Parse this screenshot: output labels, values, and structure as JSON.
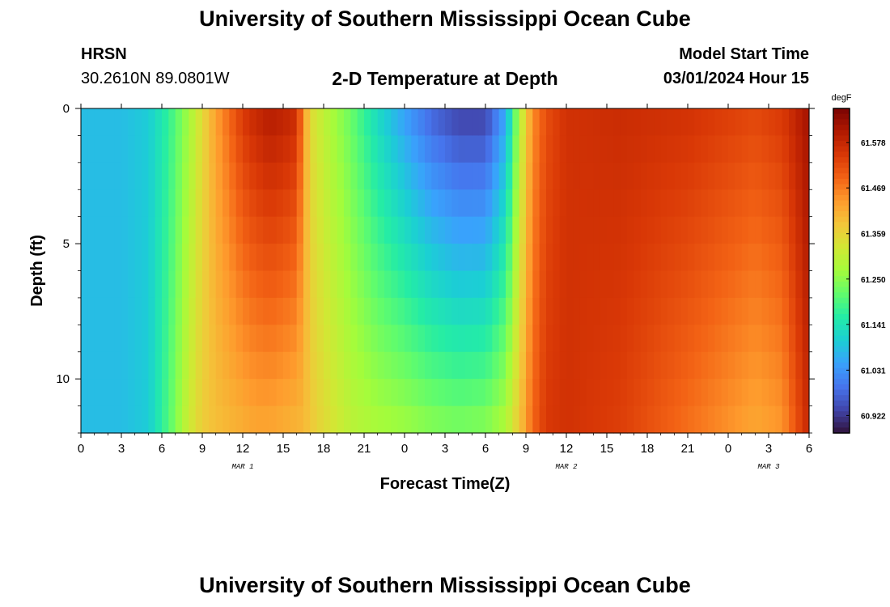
{
  "title": "University of Southern Mississippi Ocean Cube",
  "footer_title": "University of Southern Mississippi Ocean Cube",
  "station": {
    "name": "HRSN",
    "coords": "30.2610N  89.0801W"
  },
  "plot_title": "2-D Temperature at Depth",
  "model_start": {
    "label": "Model Start Time",
    "value": "03/01/2024 Hour 15"
  },
  "chart_data": {
    "type": "heatmap",
    "title": "2-D Temperature at Depth",
    "xlabel": "Forecast Time(Z)",
    "ylabel": "Depth (ft)",
    "x_ticks": [
      "0",
      "3",
      "6",
      "9",
      "12",
      "15",
      "18",
      "21",
      "0",
      "3",
      "6",
      "9",
      "12",
      "15",
      "18",
      "21",
      "0",
      "3",
      "6"
    ],
    "x_tick_hours": [
      0,
      3,
      6,
      9,
      12,
      15,
      18,
      21,
      24,
      27,
      30,
      33,
      36,
      39,
      42,
      45,
      48,
      51,
      54
    ],
    "x_range_hours": [
      0,
      54
    ],
    "day_labels": [
      {
        "label": "MAR 1",
        "hour": 12
      },
      {
        "label": "MAR 2",
        "hour": 36
      },
      {
        "label": "MAR 3",
        "hour": 51
      }
    ],
    "y_ticks": [
      "0",
      "5",
      "10"
    ],
    "y_tick_values": [
      0,
      5,
      10
    ],
    "y_range_ft": [
      0,
      12
    ],
    "y_reversed": true,
    "colorbar": {
      "unit": "degF",
      "ticks": [
        "61.578",
        "61.469",
        "61.359",
        "61.250",
        "61.141",
        "61.031",
        "60.922"
      ],
      "tick_values": [
        61.578,
        61.469,
        61.359,
        61.25,
        61.141,
        61.031,
        60.922
      ],
      "range": [
        60.88,
        61.66
      ],
      "colors": [
        "#30123b",
        "#4145ab",
        "#4675ed",
        "#39a2fc",
        "#1bcfd4",
        "#24eca6",
        "#61fc6c",
        "#a4fc3b",
        "#d1e834",
        "#f3c63a",
        "#fe9b2d",
        "#f36315",
        "#d93806",
        "#b11901",
        "#7a0403"
      ]
    },
    "time_profile": {
      "hours": [
        0,
        3,
        5,
        6.5,
        8,
        9,
        10,
        11,
        12,
        13,
        14,
        15,
        16,
        16.5,
        17,
        18,
        20,
        22,
        24,
        26,
        28,
        30,
        31.5,
        32.5,
        33.5,
        34.5,
        36,
        40,
        45,
        50,
        52,
        54
      ],
      "surface_degF": [
        61.08,
        61.08,
        61.1,
        61.17,
        61.27,
        61.35,
        61.43,
        61.49,
        61.55,
        61.58,
        61.6,
        61.59,
        61.57,
        61.45,
        61.35,
        61.3,
        61.22,
        61.12,
        61.04,
        60.97,
        60.93,
        60.93,
        61.05,
        61.28,
        61.45,
        61.52,
        61.56,
        61.57,
        61.56,
        61.53,
        61.55,
        61.62
      ],
      "bottom_degF": [
        61.08,
        61.08,
        61.1,
        61.2,
        61.32,
        61.37,
        61.39,
        61.4,
        61.41,
        61.42,
        61.42,
        61.41,
        61.4,
        61.4,
        61.38,
        61.35,
        61.3,
        61.28,
        61.27,
        61.25,
        61.24,
        61.25,
        61.29,
        61.38,
        61.49,
        61.55,
        61.56,
        61.54,
        61.48,
        61.42,
        61.44,
        61.58
      ]
    }
  }
}
